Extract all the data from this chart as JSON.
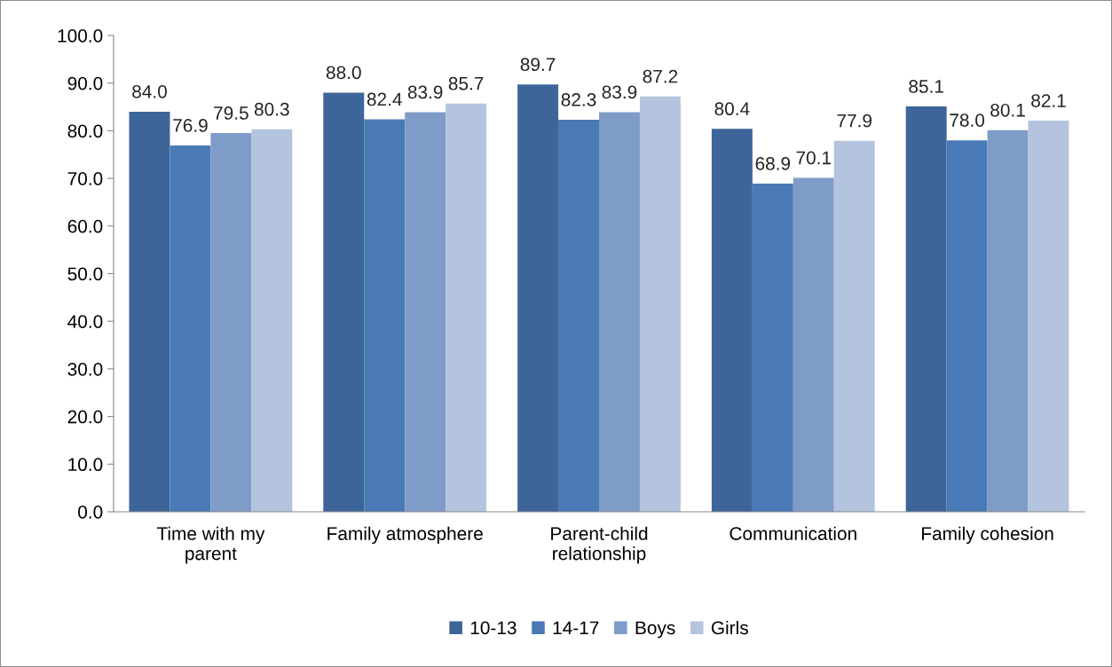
{
  "chart_data": {
    "type": "bar",
    "categories": [
      "Time with my\nparent",
      "Family atmosphere",
      "Parent-child\nrelationship",
      "Communication",
      "Family cohesion"
    ],
    "series": [
      {
        "name": "10-13",
        "color": "#3d6599",
        "values": [
          84.0,
          88.0,
          89.7,
          80.4,
          85.1
        ],
        "value_labels": [
          "84.0",
          "88.0",
          "89.7",
          "80.4",
          "85.1"
        ]
      },
      {
        "name": "14-17",
        "color": "#4a7ab5",
        "values": [
          76.9,
          82.4,
          82.3,
          68.9,
          78.0
        ],
        "value_labels": [
          "76.9",
          "82.4",
          "82.3",
          "68.9",
          "78.0"
        ]
      },
      {
        "name": "Boys",
        "color": "#7f9cc9",
        "values": [
          79.5,
          83.9,
          83.9,
          70.1,
          80.1
        ],
        "value_labels": [
          "79.5",
          "83.9",
          "83.9",
          "70.1",
          "80.1"
        ]
      },
      {
        "name": "Girls",
        "color": "#b4c4de",
        "values": [
          80.3,
          85.7,
          87.2,
          77.9,
          82.1
        ],
        "value_labels": [
          "80.3",
          "85.7",
          "87.2",
          "77.9",
          "82.1"
        ]
      }
    ],
    "ylim": [
      0,
      100
    ],
    "yticks": [
      {
        "value": 0,
        "label": "0.0"
      },
      {
        "value": 10,
        "label": "10.0"
      },
      {
        "value": 20,
        "label": "20.0"
      },
      {
        "value": 30,
        "label": "30.0"
      },
      {
        "value": 40,
        "label": "40.0"
      },
      {
        "value": 50,
        "label": "50.0"
      },
      {
        "value": 60,
        "label": "60.0"
      },
      {
        "value": 70,
        "label": "70.0"
      },
      {
        "value": 80,
        "label": "80.0"
      },
      {
        "value": 90,
        "label": "90.0"
      },
      {
        "value": 100,
        "label": "100.0"
      }
    ],
    "grid": false,
    "legend": "bottom"
  }
}
